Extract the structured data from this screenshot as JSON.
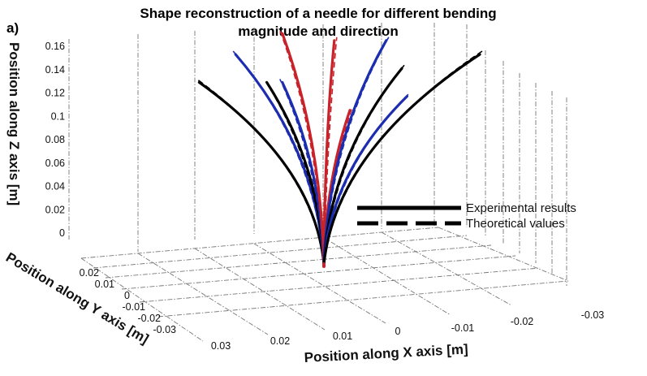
{
  "panel_label": "a)",
  "chart_data": {
    "type": "line-3d",
    "title": [
      "Shape reconstruction of a needle for different bending",
      "magnitude and direction"
    ],
    "xlabel": "Position along X axis [m]",
    "ylabel": "Position along Y axis [m]",
    "zlabel": "Position along Z axis [m]",
    "x_ticks": [
      "0.03",
      "0.02",
      "0.01",
      "0",
      "-0.01",
      "-0.02",
      "-0.03"
    ],
    "y_ticks": [
      "0.02",
      "0.01",
      "0",
      "-0.01",
      "-0.02",
      "-0.03"
    ],
    "z_ticks": [
      "0",
      "0.02",
      "0.04",
      "0.06",
      "0.08",
      "0.1",
      "0.12",
      "0.14",
      "0.16"
    ],
    "xlim": [
      0.03,
      -0.03
    ],
    "ylim": [
      0.02,
      -0.03
    ],
    "zlim": [
      0,
      0.16
    ],
    "grid": true,
    "legend": {
      "placement": "right-center",
      "entries": [
        {
          "label": "Experimental results",
          "style": "solid",
          "color": "#000000"
        },
        {
          "label": "Theoretical values",
          "style": "dashed",
          "color": "#000000"
        }
      ]
    },
    "colors": {
      "black": "#000000",
      "blue": "#1c2db0",
      "red": "#c8232a"
    },
    "series": [
      {
        "color": "black",
        "tip": {
          "x": 0.024,
          "y": 0.0,
          "z": 0.13
        }
      },
      {
        "color": "blue",
        "tip": {
          "x": 0.017,
          "y": 0.0,
          "z": 0.15
        }
      },
      {
        "color": "black",
        "tip": {
          "x": 0.011,
          "y": 0.0,
          "z": 0.13
        }
      },
      {
        "color": "blue",
        "tip": {
          "x": 0.008,
          "y": 0.0,
          "z": 0.13
        }
      },
      {
        "color": "red",
        "tip": {
          "x": 0.008,
          "y": 0.0,
          "z": 0.165
        }
      },
      {
        "color": "red",
        "tip": {
          "x": -0.002,
          "y": 0.0,
          "z": 0.16
        }
      },
      {
        "color": "red",
        "tip": {
          "x": -0.005,
          "y": 0.0,
          "z": 0.11
        }
      },
      {
        "color": "blue",
        "tip": {
          "x": -0.012,
          "y": 0.0,
          "z": 0.16
        }
      },
      {
        "color": "black",
        "tip": {
          "x": -0.015,
          "y": 0.0,
          "z": 0.14
        }
      },
      {
        "color": "blue",
        "tip": {
          "x": -0.016,
          "y": 0.0,
          "z": 0.12
        }
      },
      {
        "color": "black",
        "tip": {
          "x": -0.03,
          "y": 0.0,
          "z": 0.15
        }
      }
    ]
  }
}
